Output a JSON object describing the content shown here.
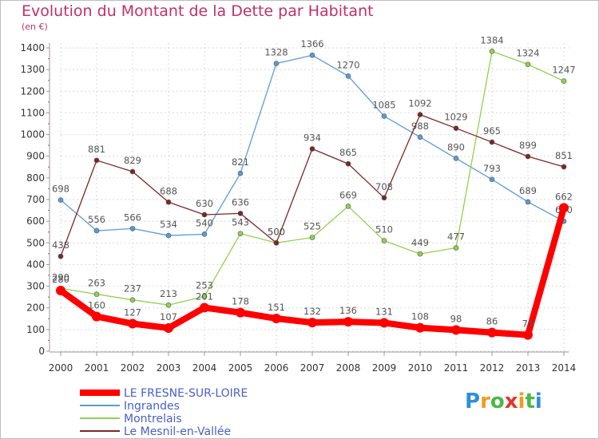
{
  "title": "Evolution du Montant de la Dette par Habitant",
  "subtitle": "(en €)",
  "logo": {
    "letters": [
      "P",
      "r",
      "o",
      "x",
      "i",
      "t",
      "i"
    ],
    "colors": [
      "#2f8fd8",
      "#f29a1f",
      "#4db848",
      "#e3342f",
      "#f29a1f",
      "#4db848",
      "#2f8fd8"
    ]
  },
  "chart_data": {
    "type": "line",
    "x": [
      "2000",
      "2001",
      "2002",
      "2003",
      "2004",
      "2005",
      "2006",
      "2007",
      "2008",
      "2009",
      "2010",
      "2011",
      "2012",
      "2013",
      "2014"
    ],
    "yticks": [
      "0",
      "100",
      "200",
      "300",
      "400",
      "500",
      "600",
      "700",
      "800",
      "900",
      "1000",
      "1100",
      "1200",
      "1300",
      "1400"
    ],
    "ylim": [
      0,
      1400
    ],
    "grid": true,
    "legend_position": "bottom-left",
    "series": [
      {
        "name": "Ingrandes",
        "color": "#5b9bd5",
        "values": [
          698,
          556,
          566,
          534,
          540,
          821,
          1328,
          1366,
          1270,
          1085,
          988,
          890,
          793,
          689,
          600
        ],
        "labels": [
          "698",
          "556",
          "566",
          "534",
          "540",
          "821",
          "1328",
          "1366",
          "1270",
          "1085",
          "988",
          "890",
          "793",
          "689",
          "600"
        ]
      },
      {
        "name": "Montrelais",
        "color": "#92d050",
        "values": [
          290,
          263,
          237,
          213,
          253,
          543,
          500,
          525,
          669,
          510,
          449,
          477,
          1384,
          1324,
          1247
        ],
        "labels": [
          "290",
          "263",
          "237",
          "213",
          "253",
          "543",
          "500",
          "525",
          "669",
          "510",
          "449",
          "477",
          "1384",
          "1324",
          "1247"
        ]
      },
      {
        "name": "Le Mesnil-en-Vallée",
        "color": "#7b2626",
        "values": [
          438,
          881,
          829,
          688,
          630,
          636,
          500,
          934,
          865,
          708,
          1092,
          1029,
          965,
          899,
          851
        ],
        "labels": [
          "438",
          "881",
          "829",
          "688",
          "630",
          "636",
          "500",
          "934",
          "865",
          "708",
          "1092",
          "1029",
          "965",
          "899",
          "851"
        ]
      },
      {
        "name": "LE FRESNE-SUR-LOIRE",
        "color": "#ff0000",
        "values": [
          280,
          160,
          127,
          107,
          201,
          178,
          151,
          132,
          136,
          131,
          108,
          98,
          86,
          75,
          662
        ],
        "labels": [
          "280",
          "160",
          "127",
          "107",
          "201",
          "178",
          "151",
          "132",
          "136",
          "131",
          "108",
          "98",
          "86",
          "75",
          "662"
        ]
      }
    ],
    "legend": [
      {
        "name": "LE FRESNE-SUR-LOIRE",
        "color": "#ff0000",
        "text_color": "#4a5fc8"
      },
      {
        "name": "Ingrandes",
        "color": "#5b9bd5",
        "text_color": "#4a5fc8"
      },
      {
        "name": "Montrelais",
        "color": "#92d050",
        "text_color": "#4a5fc8"
      },
      {
        "name": "Le Mesnil-en-Vallée",
        "color": "#7b2626",
        "text_color": "#4a5fc8"
      }
    ]
  }
}
